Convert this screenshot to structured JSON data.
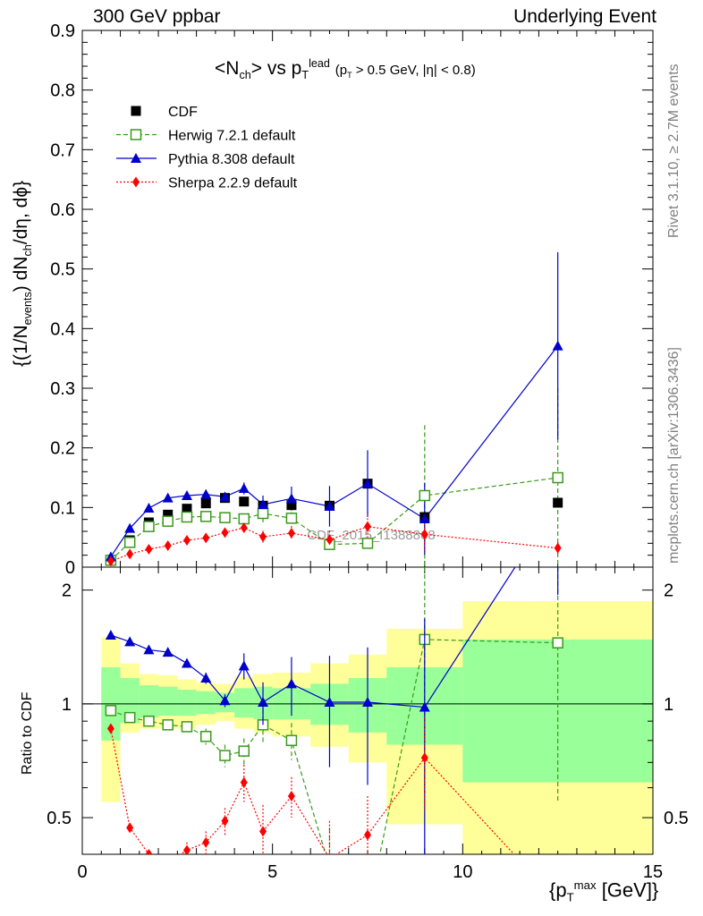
{
  "header": {
    "left": "300 GeV ppbar",
    "right": "Underlying Event"
  },
  "side_text": {
    "top": "Rivet 3.1.10, ≥ 2.7M events",
    "bottom": "mcplots.cern.ch [arXiv:1306.3436]"
  },
  "watermark": "CDF_2015_I1388868",
  "axis_labels": {
    "main_y": "{(1/Nevents) dNch/dη, dϕ}",
    "ratio_y": "Ratio to CDF",
    "x": "{pTmax [GeV]}"
  },
  "plot_title": "<Nch> vs pTlead (pT > 0.5 GeV, |η| < 0.8)",
  "legend": [
    {
      "label": "CDF",
      "color": "#000000",
      "marker": "filled-square"
    },
    {
      "label": "Herwig 7.2.1 default",
      "color": "#3a9a1a",
      "marker": "open-square"
    },
    {
      "label": "Pythia 8.308 default",
      "color": "#0000cc",
      "marker": "filled-triangle"
    },
    {
      "label": "Sherpa 2.2.9 default",
      "color": "#ff0000",
      "marker": "filled-diamond"
    }
  ],
  "chart_data": {
    "type": "scatter",
    "x_ticks": [
      "0",
      "5",
      "10",
      "15"
    ],
    "main_y_ticks": [
      "0",
      "0.1",
      "0.2",
      "0.3",
      "0.4",
      "0.5",
      "0.6",
      "0.7",
      "0.8",
      "0.9"
    ],
    "ratio_y_ticks": [
      "0.5",
      "1",
      "2"
    ],
    "xlim": [
      0,
      15
    ],
    "main_ylim": [
      0,
      0.9
    ],
    "ratio_ylim": [
      0.4,
      2.3
    ],
    "ratio_scale": "log",
    "x": [
      0.75,
      1.25,
      1.75,
      2.25,
      2.75,
      3.25,
      3.75,
      4.25,
      4.75,
      5.5,
      6.5,
      7.5,
      9.0,
      12.5
    ],
    "series": [
      {
        "name": "CDF",
        "color": "#000000",
        "values": [
          0.012,
          0.045,
          0.075,
          0.088,
          0.098,
          0.107,
          0.116,
          0.11,
          0.103,
          0.104,
          0.103,
          0.14,
          0.084,
          0.108
        ]
      },
      {
        "name": "Herwig 7.2.1 default",
        "color": "#3a9a1a",
        "values": [
          0.0115,
          0.0415,
          0.068,
          0.077,
          0.084,
          0.085,
          0.083,
          0.081,
          0.09,
          0.082,
          0.038,
          0.04,
          0.12,
          0.15
        ],
        "errors": [
          0,
          0,
          0,
          0,
          0.004,
          0.005,
          0.006,
          0.008,
          0.015,
          0.01,
          0.009,
          0.008,
          0.118,
          0.15
        ]
      },
      {
        "name": "Pythia 8.308 default",
        "color": "#0000cc",
        "values": [
          0.0175,
          0.065,
          0.099,
          0.116,
          0.12,
          0.122,
          0.118,
          0.132,
          0.105,
          0.115,
          0.102,
          0.14,
          0.081,
          0.371
        ],
        "errors": [
          0,
          0,
          0,
          0,
          0,
          0.004,
          0.003,
          0.01,
          0.015,
          0.02,
          0.034,
          0.056,
          0.06,
          0.157
        ]
      },
      {
        "name": "Sherpa 2.2.9 default",
        "color": "#ff0000",
        "values": [
          0.01,
          0.022,
          0.03,
          0.036,
          0.045,
          0.049,
          0.058,
          0.066,
          0.051,
          0.057,
          0.046,
          0.068,
          0.055,
          0.032
        ],
        "errors": [
          0,
          0,
          0,
          0,
          0.003,
          0.004,
          0.005,
          0.007,
          0.01,
          0.012,
          0.015,
          0.02,
          0.03,
          0.01
        ]
      }
    ],
    "ratio_series": [
      {
        "name": "Herwig 7.2.1 default",
        "color": "#3a9a1a",
        "values": [
          0.96,
          0.92,
          0.9,
          0.88,
          0.87,
          0.82,
          0.73,
          0.75,
          0.88,
          0.8,
          0.37,
          0.28,
          1.48,
          1.45
        ],
        "errors": [
          0,
          0,
          0,
          0,
          0.02,
          0.04,
          0.05,
          0.06,
          0.09,
          0.09,
          0.1,
          0.1,
          0.9,
          0.9
        ]
      },
      {
        "name": "Pythia 8.308 default",
        "color": "#0000cc",
        "values": [
          1.52,
          1.46,
          1.39,
          1.37,
          1.28,
          1.17,
          1.02,
          1.26,
          1.01,
          1.13,
          1.01,
          1.01,
          0.98,
          3.44
        ],
        "errors": [
          0,
          0,
          0,
          0,
          0,
          0.04,
          0.04,
          0.1,
          0.13,
          0.2,
          0.33,
          0.4,
          0.7,
          1.5
        ]
      },
      {
        "name": "Sherpa 2.2.9 default",
        "color": "#ff0000",
        "values": [
          0.86,
          0.47,
          0.4,
          0.38,
          0.41,
          0.43,
          0.49,
          0.62,
          0.46,
          0.57,
          0.39,
          0.45,
          0.72,
          0.3
        ],
        "errors": [
          0,
          0,
          0,
          0,
          0.02,
          0.03,
          0.04,
          0.07,
          0.08,
          0.07,
          0.1,
          0.12,
          0.2,
          0.1
        ]
      }
    ],
    "bands": {
      "green": [
        {
          "x0": 0.5,
          "x1": 1.0,
          "lo": 0.8,
          "hi": 1.25
        },
        {
          "x0": 1.0,
          "x1": 1.5,
          "lo": 0.89,
          "hi": 1.17
        },
        {
          "x0": 1.5,
          "x1": 2.0,
          "lo": 0.92,
          "hi": 1.12
        },
        {
          "x0": 2.0,
          "x1": 2.5,
          "lo": 0.93,
          "hi": 1.11
        },
        {
          "x0": 2.5,
          "x1": 3.0,
          "lo": 0.93,
          "hi": 1.09
        },
        {
          "x0": 3.0,
          "x1": 3.5,
          "lo": 0.94,
          "hi": 1.08
        },
        {
          "x0": 3.5,
          "x1": 4.0,
          "lo": 0.95,
          "hi": 1.07
        },
        {
          "x0": 4.0,
          "x1": 4.5,
          "lo": 0.92,
          "hi": 1.1
        },
        {
          "x0": 4.5,
          "x1": 5.0,
          "lo": 0.91,
          "hi": 1.11
        },
        {
          "x0": 5.0,
          "x1": 6.0,
          "lo": 0.91,
          "hi": 1.1
        },
        {
          "x0": 6.0,
          "x1": 7.0,
          "lo": 0.88,
          "hi": 1.13
        },
        {
          "x0": 7.0,
          "x1": 8.0,
          "lo": 0.84,
          "hi": 1.17
        },
        {
          "x0": 8.0,
          "x1": 10.0,
          "lo": 0.78,
          "hi": 1.25
        },
        {
          "x0": 10.0,
          "x1": 15.0,
          "lo": 0.62,
          "hi": 1.48
        }
      ],
      "yellow": [
        {
          "x0": 0.5,
          "x1": 1.0,
          "lo": 0.55,
          "hi": 1.5
        },
        {
          "x0": 1.0,
          "x1": 1.5,
          "lo": 0.84,
          "hi": 1.28
        },
        {
          "x0": 1.5,
          "x1": 2.0,
          "lo": 0.86,
          "hi": 1.2
        },
        {
          "x0": 2.0,
          "x1": 2.5,
          "lo": 0.86,
          "hi": 1.19
        },
        {
          "x0": 2.5,
          "x1": 3.0,
          "lo": 0.86,
          "hi": 1.16
        },
        {
          "x0": 3.0,
          "x1": 3.5,
          "lo": 0.88,
          "hi": 1.14
        },
        {
          "x0": 3.5,
          "x1": 4.0,
          "lo": 0.9,
          "hi": 1.13
        },
        {
          "x0": 4.0,
          "x1": 4.5,
          "lo": 0.86,
          "hi": 1.18
        },
        {
          "x0": 4.5,
          "x1": 5.0,
          "lo": 0.84,
          "hi": 1.2
        },
        {
          "x0": 5.0,
          "x1": 6.0,
          "lo": 0.82,
          "hi": 1.21
        },
        {
          "x0": 6.0,
          "x1": 7.0,
          "lo": 0.77,
          "hi": 1.28
        },
        {
          "x0": 7.0,
          "x1": 8.0,
          "lo": 0.7,
          "hi": 1.35
        },
        {
          "x0": 8.0,
          "x1": 10.0,
          "lo": 0.48,
          "hi": 1.58
        },
        {
          "x0": 10.0,
          "x1": 15.0,
          "lo": 0.38,
          "hi": 1.87
        }
      ]
    }
  }
}
